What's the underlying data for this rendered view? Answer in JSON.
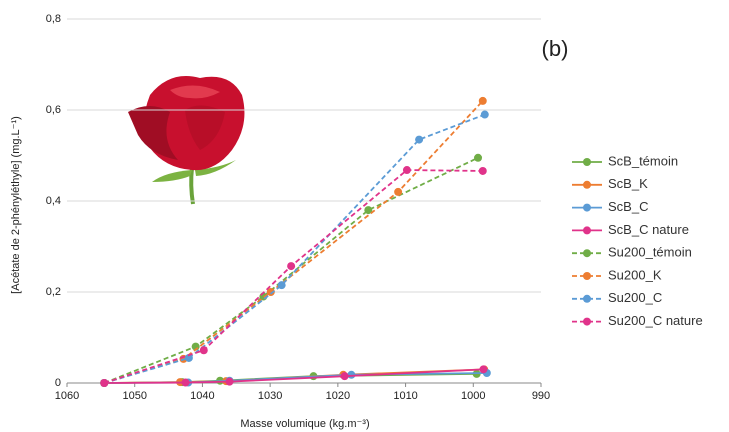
{
  "chart_data": {
    "type": "line",
    "annotation": "(b)",
    "x_label": "Masse volumique (kg.m⁻³)",
    "y_label": "[Acétate de 2-phényléthyle] (mg.L⁻¹)",
    "xlim": [
      1060,
      990
    ],
    "xticks": [
      1060,
      1050,
      1040,
      1030,
      1020,
      1010,
      1000,
      990
    ],
    "ylim": [
      0,
      0.8
    ],
    "yticks": [
      0,
      {
        "value": 0.2,
        "label": "0,2"
      },
      {
        "value": 0.4,
        "label": "0,4"
      },
      {
        "value": 0.6,
        "label": "0,6"
      },
      {
        "value": 0.8,
        "label": "0,8"
      }
    ],
    "grid": true,
    "legend": "right",
    "series": [
      {
        "name": "ScB_témoin",
        "color": "#70ad47",
        "dashed": false,
        "x": [
          1054.5,
          1043,
          1037.4,
          1023.6,
          999.5
        ],
        "values": [
          0,
          0.002,
          0.005,
          0.015,
          0.02
        ]
      },
      {
        "name": "ScB_K",
        "color": "#ed7d31",
        "dashed": false,
        "x": [
          1054.5,
          1043.3,
          1036.5,
          1019.2,
          998.4
        ],
        "values": [
          0,
          0.002,
          0.004,
          0.018,
          0.03
        ]
      },
      {
        "name": "ScB_C",
        "color": "#5b9bd5",
        "dashed": false,
        "x": [
          1054.5,
          1042.1,
          1036,
          1018,
          998
        ],
        "values": [
          0,
          0.001,
          0.005,
          0.018,
          0.022
        ]
      },
      {
        "name": "ScB_C nature",
        "color": "#e0338a",
        "dashed": false,
        "x": [
          1054.5,
          1042.5,
          1036,
          1019,
          998.5
        ],
        "values": [
          0,
          0.001,
          0.003,
          0.015,
          0.03
        ]
      },
      {
        "name": "Su200_témoin",
        "color": "#70ad47",
        "dashed": false,
        "x": [
          1054.5,
          1041,
          1031,
          1015.5,
          999.3
        ],
        "values": [
          0,
          0.08,
          0.19,
          0.38,
          0.495
        ],
        "dash": true
      },
      {
        "name": "Su200_K",
        "color": "#ed7d31",
        "x": [
          1054.5,
          1042.8,
          1029.9,
          1011.1,
          998.6
        ],
        "values": [
          0,
          0.053,
          0.2,
          0.42,
          0.62
        ],
        "dash": true
      },
      {
        "name": "Su200_C",
        "color": "#5b9bd5",
        "x": [
          1054.5,
          1042,
          1028.3,
          1008,
          998.3
        ],
        "values": [
          0,
          0.055,
          0.215,
          0.535,
          0.59
        ],
        "dash": true
      },
      {
        "name": "Su200_C nature",
        "color": "#e0338a",
        "x": [
          1054.5,
          1039.8,
          1026.9,
          1009.8,
          998.6
        ],
        "values": [
          0,
          0.072,
          0.257,
          0.468,
          0.466
        ],
        "dash": true
      }
    ]
  }
}
